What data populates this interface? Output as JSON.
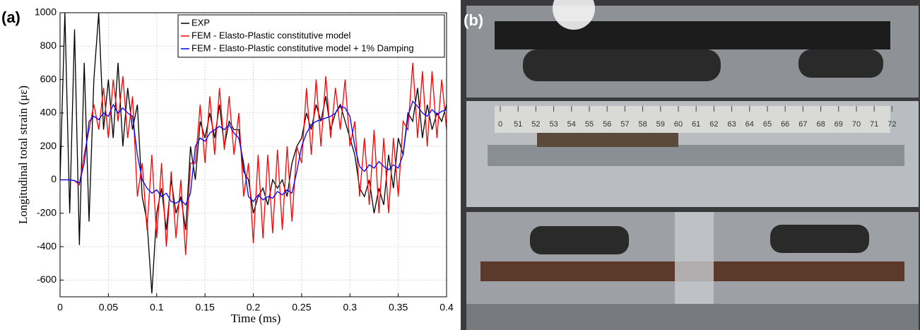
{
  "panel_labels": [
    "(a)",
    "(b)"
  ],
  "photo": {
    "ruler_labels": [
      "0",
      "51",
      "52",
      "53",
      "54",
      "55",
      "56",
      "57",
      "58",
      "59",
      "60",
      "61",
      "62",
      "63",
      "64",
      "65",
      "66",
      "67",
      "68",
      "69",
      "70",
      "71",
      "72"
    ]
  },
  "chart_data": {
    "type": "line",
    "x_label": "Time (ms)",
    "y_label": "Longitudinal total strain (με)",
    "x": [
      0,
      0.005,
      0.01,
      0.015,
      0.02,
      0.025,
      0.03,
      0.035,
      0.04,
      0.045,
      0.05,
      0.055,
      0.06,
      0.065,
      0.07,
      0.075,
      0.08,
      0.085,
      0.09,
      0.095,
      0.1,
      0.105,
      0.11,
      0.115,
      0.12,
      0.125,
      0.13,
      0.135,
      0.14,
      0.145,
      0.15,
      0.155,
      0.16,
      0.165,
      0.17,
      0.175,
      0.18,
      0.185,
      0.19,
      0.195,
      0.2,
      0.205,
      0.21,
      0.215,
      0.22,
      0.225,
      0.23,
      0.235,
      0.24,
      0.245,
      0.25,
      0.255,
      0.26,
      0.265,
      0.27,
      0.275,
      0.28,
      0.285,
      0.29,
      0.295,
      0.3,
      0.305,
      0.31,
      0.315,
      0.32,
      0.325,
      0.33,
      0.335,
      0.34,
      0.345,
      0.35,
      0.355,
      0.36,
      0.365,
      0.37,
      0.375,
      0.38,
      0.385,
      0.39,
      0.395,
      0.4
    ],
    "series": [
      {
        "name": "EXP",
        "color": "#000000",
        "values": [
          0,
          1000,
          -200,
          900,
          -390,
          700,
          -250,
          600,
          1000,
          300,
          600,
          250,
          700,
          200,
          550,
          300,
          450,
          -100,
          -250,
          -680,
          -200,
          -50,
          -300,
          0,
          -200,
          -100,
          -300,
          200,
          0,
          350,
          250,
          400,
          250,
          450,
          200,
          350,
          300,
          300,
          50,
          0,
          -200,
          -100,
          -50,
          -150,
          0,
          -50,
          0,
          -100,
          100,
          200,
          250,
          400,
          300,
          450,
          350,
          500,
          300,
          400,
          450,
          350,
          250,
          150,
          -50,
          -100,
          0,
          -200,
          -50,
          -150,
          150,
          -50,
          250,
          150,
          400,
          350,
          550,
          250,
          450,
          300,
          400,
          350,
          450
        ]
      },
      {
        "name": "FEM - Elasto-Plastic constitutive model",
        "color": "#ff0000",
        "values": [
          0,
          0,
          0,
          -5,
          -30,
          150,
          300,
          450,
          300,
          550,
          250,
          600,
          350,
          620,
          250,
          500,
          -100,
          100,
          -300,
          150,
          -350,
          100,
          -400,
          50,
          -350,
          0,
          -450,
          100,
          100,
          450,
          100,
          500,
          150,
          550,
          180,
          500,
          150,
          400,
          -100,
          100,
          -380,
          150,
          -350,
          150,
          -320,
          180,
          -300,
          200,
          -250,
          200,
          100,
          550,
          150,
          600,
          200,
          620,
          250,
          550,
          300,
          600,
          200,
          350,
          -100,
          250,
          -150,
          300,
          -200,
          250,
          -200,
          250,
          -100,
          350,
          300,
          700,
          250,
          650,
          200,
          650,
          250,
          600,
          300
        ]
      },
      {
        "name": "FEM - Elasto-Plastic constitutive model + 1% Damping",
        "color": "#0000ff",
        "values": [
          0,
          0,
          0,
          -5,
          -20,
          100,
          350,
          380,
          360,
          400,
          380,
          450,
          400,
          430,
          400,
          380,
          150,
          0,
          -50,
          -80,
          -60,
          -100,
          -80,
          -130,
          -140,
          -120,
          -150,
          -80,
          200,
          250,
          230,
          280,
          300,
          320,
          300,
          330,
          280,
          250,
          100,
          -100,
          -130,
          -90,
          -120,
          -100,
          -110,
          -70,
          -90,
          -60,
          -80,
          50,
          200,
          280,
          330,
          350,
          360,
          370,
          380,
          400,
          440,
          430,
          380,
          200,
          80,
          50,
          90,
          70,
          110,
          80,
          60,
          90,
          70,
          150,
          380,
          470,
          440,
          400,
          380,
          420,
          390,
          410,
          420
        ]
      }
    ],
    "xlim": [
      0,
      0.4
    ],
    "xticks": [
      0,
      0.05,
      0.1,
      0.15,
      0.2,
      0.25,
      0.3,
      0.35,
      0.4
    ],
    "ylim": [
      -700,
      1000
    ],
    "yticks": [
      -600,
      -400,
      -200,
      0,
      200,
      400,
      600,
      800,
      1000
    ],
    "grid": true,
    "legend": "upper-right"
  }
}
